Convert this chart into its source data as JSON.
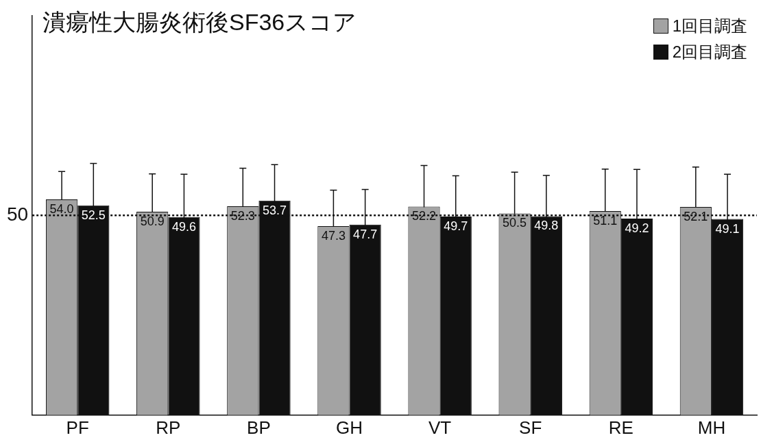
{
  "chart_data": {
    "type": "bar",
    "title": "潰瘍性大腸炎術後SF36スコア",
    "categories": [
      "PF",
      "RP",
      "BP",
      "GH",
      "VT",
      "SF",
      "RE",
      "MH"
    ],
    "series": [
      {
        "name": "1回目調査",
        "color": "#a3a3a3",
        "values": [
          54.0,
          50.9,
          52.3,
          47.3,
          52.2,
          50.5,
          51.1,
          52.1
        ],
        "errors": [
          7,
          9.5,
          9.5,
          9,
          10.3,
          10.3,
          10.5,
          10
        ],
        "value_labels": [
          "54.0",
          "50.9",
          "52.3",
          "47.3",
          "52.2",
          "50.5",
          "51.1",
          "52.1"
        ]
      },
      {
        "name": "2回目調査",
        "color": "#111111",
        "values": [
          52.5,
          49.6,
          53.7,
          47.7,
          49.7,
          49.8,
          49.2,
          49.1
        ],
        "errors": [
          10.5,
          10.7,
          9,
          8.8,
          10.2,
          10.2,
          12.3,
          11.2
        ],
        "value_labels": [
          "52.5",
          "49.6",
          "53.7",
          "47.7",
          "49.7",
          "49.8",
          "49.2",
          "49.1"
        ]
      }
    ],
    "ylim": [
      0,
      100
    ],
    "yticks": [
      50
    ],
    "ref_lines": [
      {
        "axis": "y",
        "value": 50,
        "line_style": "dotted",
        "color": "#111111"
      }
    ],
    "grid": false,
    "legend": "top right"
  }
}
